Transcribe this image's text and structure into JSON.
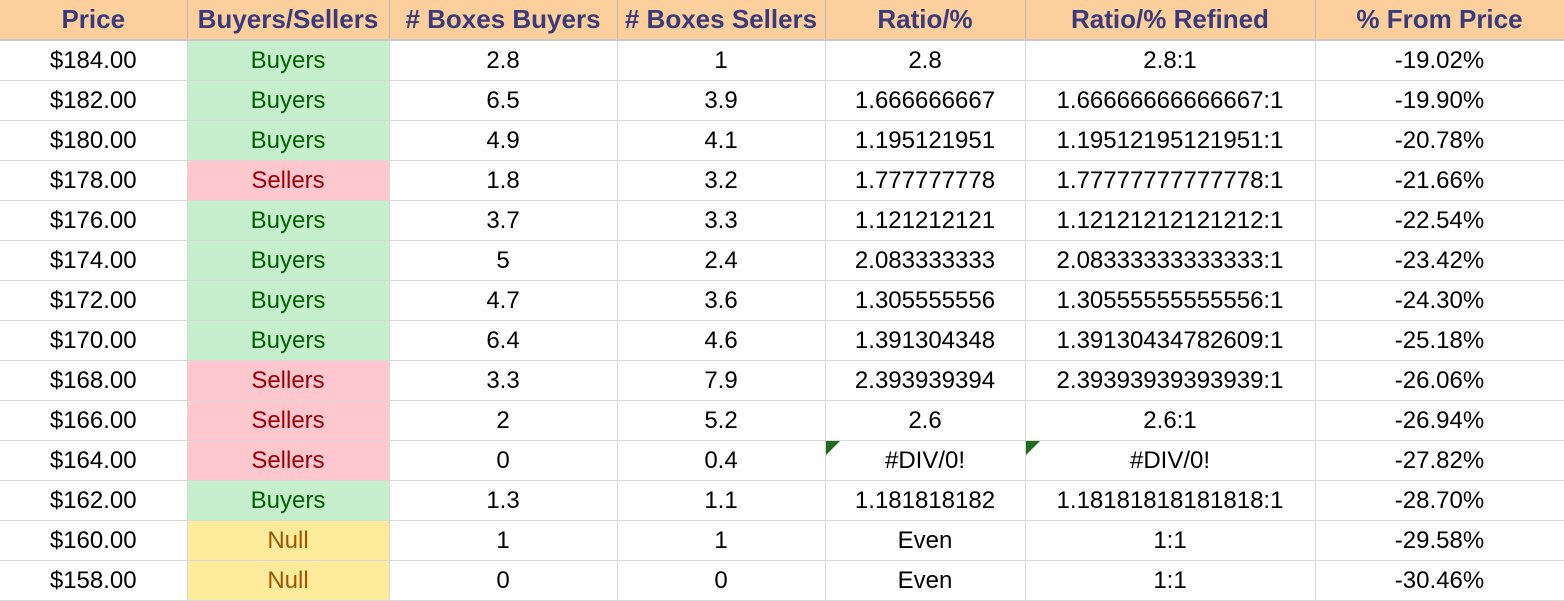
{
  "headers": [
    "Price",
    "Buyers/Sellers",
    "# Boxes Buyers",
    "# Boxes Sellers",
    "Ratio/%",
    "Ratio/% Refined",
    "% From Price"
  ],
  "status_colors": {
    "Buyers": {
      "bg": "#c6efce",
      "fg": "#006100"
    },
    "Sellers": {
      "bg": "#ffc7ce",
      "fg": "#9c0006"
    },
    "Null": {
      "bg": "#ffeb9c",
      "fg": "#9c5700"
    }
  },
  "rows": [
    {
      "price": "$184.00",
      "side": "Buyers",
      "boxes_buyers": "2.8",
      "boxes_sellers": "1",
      "ratio": "2.8",
      "ratio_refined": "2.8:1",
      "from_price": "-19.02%"
    },
    {
      "price": "$182.00",
      "side": "Buyers",
      "boxes_buyers": "6.5",
      "boxes_sellers": "3.9",
      "ratio": "1.666666667",
      "ratio_refined": "1.66666666666667:1",
      "from_price": "-19.90%"
    },
    {
      "price": "$180.00",
      "side": "Buyers",
      "boxes_buyers": "4.9",
      "boxes_sellers": "4.1",
      "ratio": "1.195121951",
      "ratio_refined": "1.19512195121951:1",
      "from_price": "-20.78%"
    },
    {
      "price": "$178.00",
      "side": "Sellers",
      "boxes_buyers": "1.8",
      "boxes_sellers": "3.2",
      "ratio": "1.777777778",
      "ratio_refined": "1.77777777777778:1",
      "from_price": "-21.66%"
    },
    {
      "price": "$176.00",
      "side": "Buyers",
      "boxes_buyers": "3.7",
      "boxes_sellers": "3.3",
      "ratio": "1.121212121",
      "ratio_refined": "1.12121212121212:1",
      "from_price": "-22.54%"
    },
    {
      "price": "$174.00",
      "side": "Buyers",
      "boxes_buyers": "5",
      "boxes_sellers": "2.4",
      "ratio": "2.083333333",
      "ratio_refined": "2.08333333333333:1",
      "from_price": "-23.42%"
    },
    {
      "price": "$172.00",
      "side": "Buyers",
      "boxes_buyers": "4.7",
      "boxes_sellers": "3.6",
      "ratio": "1.305555556",
      "ratio_refined": "1.30555555555556:1",
      "from_price": "-24.30%"
    },
    {
      "price": "$170.00",
      "side": "Buyers",
      "boxes_buyers": "6.4",
      "boxes_sellers": "4.6",
      "ratio": "1.391304348",
      "ratio_refined": "1.39130434782609:1",
      "from_price": "-25.18%"
    },
    {
      "price": "$168.00",
      "side": "Sellers",
      "boxes_buyers": "3.3",
      "boxes_sellers": "7.9",
      "ratio": "2.393939394",
      "ratio_refined": "2.39393939393939:1",
      "from_price": "-26.06%"
    },
    {
      "price": "$166.00",
      "side": "Sellers",
      "boxes_buyers": "2",
      "boxes_sellers": "5.2",
      "ratio": "2.6",
      "ratio_refined": "2.6:1",
      "from_price": "-26.94%"
    },
    {
      "price": "$164.00",
      "side": "Sellers",
      "boxes_buyers": "0",
      "boxes_sellers": "0.4",
      "ratio": "#DIV/0!",
      "ratio_refined": "#DIV/0!",
      "from_price": "-27.82%",
      "error_flag": true
    },
    {
      "price": "$162.00",
      "side": "Buyers",
      "boxes_buyers": "1.3",
      "boxes_sellers": "1.1",
      "ratio": "1.181818182",
      "ratio_refined": "1.18181818181818:1",
      "from_price": "-28.70%"
    },
    {
      "price": "$160.00",
      "side": "Null",
      "boxes_buyers": "1",
      "boxes_sellers": "1",
      "ratio": "Even",
      "ratio_refined": "1:1",
      "from_price": "-29.58%"
    },
    {
      "price": "$158.00",
      "side": "Null",
      "boxes_buyers": "0",
      "boxes_sellers": "0",
      "ratio": "Even",
      "ratio_refined": "1:1",
      "from_price": "-30.46%"
    }
  ]
}
